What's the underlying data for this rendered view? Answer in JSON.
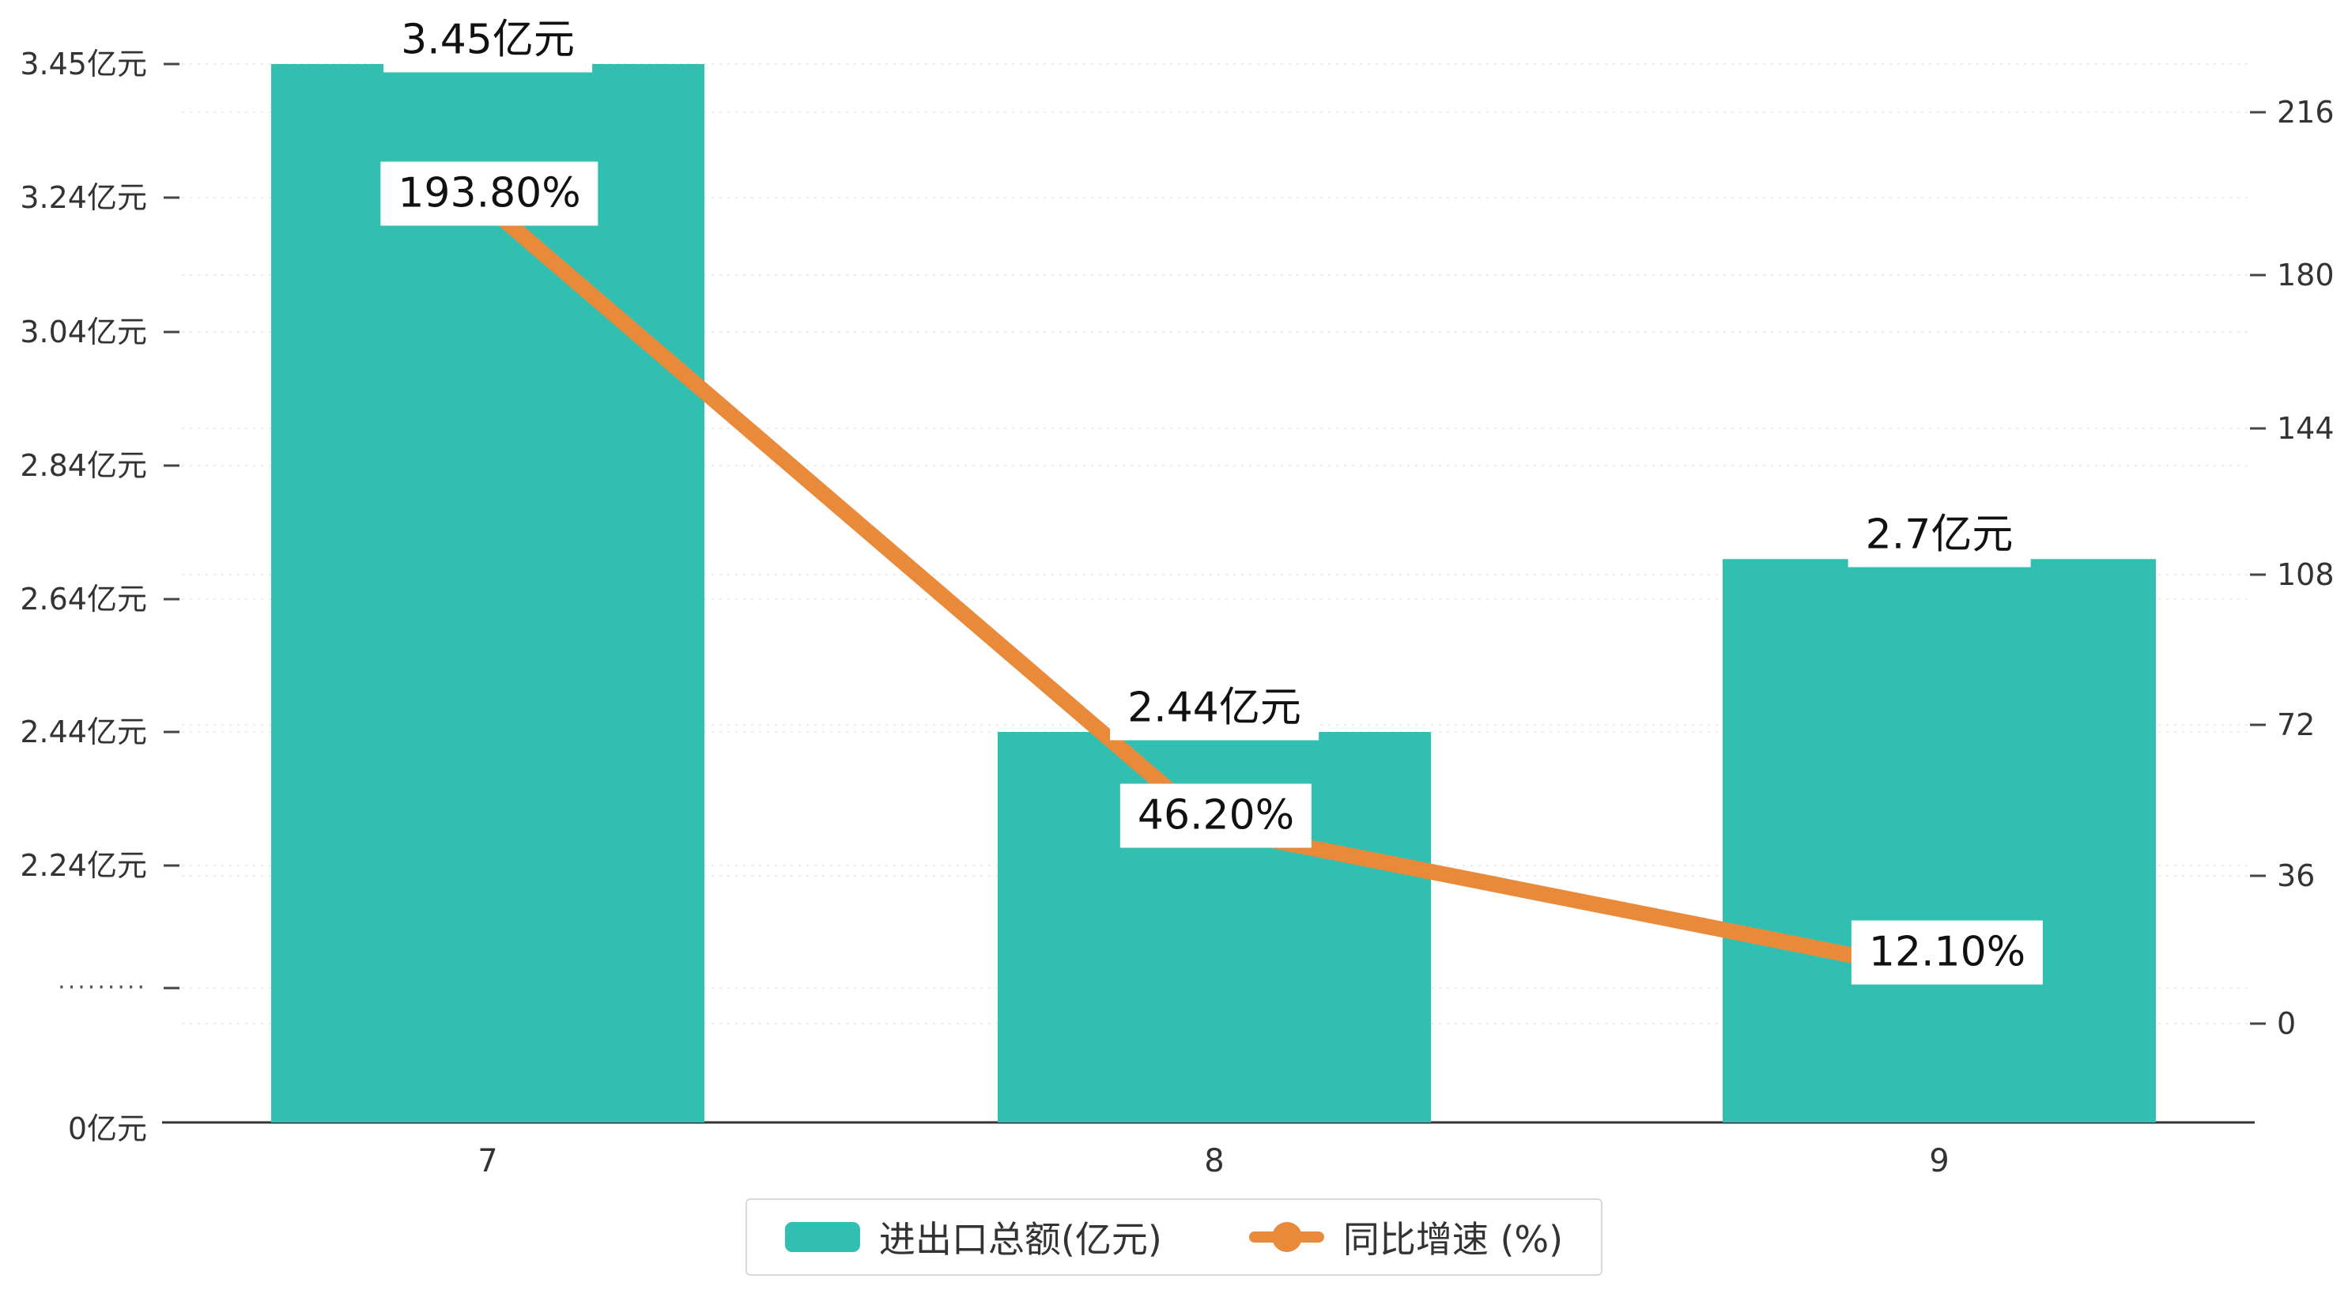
{
  "page": {
    "background": "#ffffff"
  },
  "legend": {
    "items": [
      {
        "label": "进出口总额(亿元)",
        "type": "bar",
        "color": "#31bfb2"
      },
      {
        "label": "同比增速 (%)",
        "type": "line",
        "color": "#e98a3b"
      }
    ]
  },
  "chart_data": {
    "type": "bar",
    "subtype": "combo-bar-line",
    "categories": [
      "7",
      "8",
      "9"
    ],
    "series": [
      {
        "name": "进出口总额(亿元)",
        "type": "bar",
        "axis": "left",
        "unit": "亿元",
        "values": [
          3.45,
          2.44,
          2.7
        ],
        "labels": [
          "3.45亿元",
          "2.44亿元",
          "2.7亿元"
        ],
        "color": "#31bfb2"
      },
      {
        "name": "同比增速 (%)",
        "type": "line",
        "axis": "right",
        "unit": "%",
        "values": [
          193.8,
          46.2,
          12.1
        ],
        "labels": [
          "193.80%",
          "46.20%",
          "12.10%"
        ],
        "color": "#e98a3b"
      }
    ],
    "left_axis": {
      "tick_labels": [
        "3.45亿元",
        "3.24亿元",
        "3.04亿元",
        "2.84亿元",
        "2.64亿元",
        "2.44亿元",
        "2.24亿元",
        "·········",
        "0亿元"
      ],
      "has_break": true,
      "range": [
        0,
        3.45
      ]
    },
    "right_axis": {
      "tick_labels": [
        "216",
        "180",
        "144",
        "108",
        "72",
        "36",
        "0"
      ],
      "range": [
        0,
        216
      ]
    },
    "grid": true,
    "legend_position": "bottom"
  }
}
